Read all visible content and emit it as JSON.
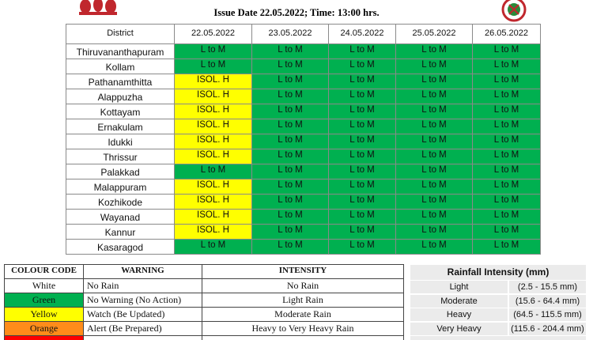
{
  "header": {
    "issue_line": "Issue Date 22.05.2022; Time: 13:00 hrs."
  },
  "forecast_table": {
    "columns": [
      "District",
      "22.05.2022",
      "23.05.2022",
      "24.05.2022",
      "25.05.2022",
      "26.05.2022"
    ],
    "rows": [
      {
        "district": "Thiruvananthapuram",
        "cells": [
          "L to M",
          "L to M",
          "L to M",
          "L to M",
          "L to M"
        ]
      },
      {
        "district": "Kollam",
        "cells": [
          "L to M",
          "L to M",
          "L to M",
          "L to M",
          "L to M"
        ]
      },
      {
        "district": "Pathanamthitta",
        "cells": [
          "ISOL. H",
          "L to M",
          "L to M",
          "L to M",
          "L to M"
        ]
      },
      {
        "district": "Alappuzha",
        "cells": [
          "ISOL. H",
          "L to M",
          "L to M",
          "L to M",
          "L to M"
        ]
      },
      {
        "district": "Kottayam",
        "cells": [
          "ISOL. H",
          "L to M",
          "L to M",
          "L to M",
          "L to M"
        ]
      },
      {
        "district": "Ernakulam",
        "cells": [
          "ISOL. H",
          "L to M",
          "L to M",
          "L to M",
          "L to M"
        ]
      },
      {
        "district": "Idukki",
        "cells": [
          "ISOL. H",
          "L to M",
          "L to M",
          "L to M",
          "L to M"
        ]
      },
      {
        "district": "Thrissur",
        "cells": [
          "ISOL. H",
          "L to M",
          "L to M",
          "L to M",
          "L to M"
        ]
      },
      {
        "district": "Palakkad",
        "cells": [
          "L to M",
          "L to M",
          "L to M",
          "L to M",
          "L to M"
        ]
      },
      {
        "district": "Malappuram",
        "cells": [
          "ISOL. H",
          "L to M",
          "L to M",
          "L to M",
          "L to M"
        ]
      },
      {
        "district": "Kozhikode",
        "cells": [
          "ISOL. H",
          "L to M",
          "L to M",
          "L to M",
          "L to M"
        ]
      },
      {
        "district": "Wayanad",
        "cells": [
          "ISOL. H",
          "L to M",
          "L to M",
          "L to M",
          "L to M"
        ]
      },
      {
        "district": "Kannur",
        "cells": [
          "ISOL. H",
          "L to M",
          "L to M",
          "L to M",
          "L to M"
        ]
      },
      {
        "district": "Kasaragod",
        "cells": [
          "L to M",
          "L to M",
          "L to M",
          "L to M",
          "L to M"
        ]
      }
    ]
  },
  "cell_colors": {
    "L to M": "#00b050",
    "ISOL. H": "#ffff00"
  },
  "legend_table": {
    "columns": [
      "COLOUR CODE",
      "WARNING",
      "INTENSITY"
    ],
    "rows": [
      {
        "code": "White",
        "color": "#ffffff",
        "warning": "No Rain",
        "intensity": "No Rain"
      },
      {
        "code": "Green",
        "color": "#00b050",
        "warning": "No Warning (No Action)",
        "intensity": "Light Rain"
      },
      {
        "code": "Yellow",
        "color": "#ffff00",
        "warning": "Watch (Be Updated)",
        "intensity": "Moderate Rain"
      },
      {
        "code": "Orange",
        "color": "#ff8c1a",
        "warning": "Alert (Be Prepared)",
        "intensity": "Heavy to Very Heavy Rain"
      },
      {
        "color": "#ff0000"
      }
    ]
  },
  "rainfall_table": {
    "title": "Rainfall Intensity (mm)",
    "rows": [
      {
        "category": "Light",
        "range": "(2.5 - 15.5 mm)"
      },
      {
        "category": "Moderate",
        "range": "(15.6 - 64.4 mm)"
      },
      {
        "category": "Heavy",
        "range": "(64.5 - 115.5 mm)"
      },
      {
        "category": "Very Heavy",
        "range": "(115.6 - 204.4 mm)"
      }
    ]
  }
}
